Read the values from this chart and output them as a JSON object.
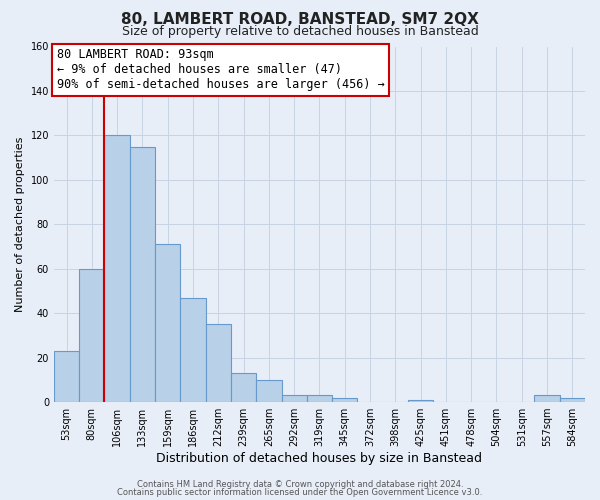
{
  "title": "80, LAMBERT ROAD, BANSTEAD, SM7 2QX",
  "subtitle": "Size of property relative to detached houses in Banstead",
  "xlabel": "Distribution of detached houses by size in Banstead",
  "ylabel": "Number of detached properties",
  "bar_labels": [
    "53sqm",
    "80sqm",
    "106sqm",
    "133sqm",
    "159sqm",
    "186sqm",
    "212sqm",
    "239sqm",
    "265sqm",
    "292sqm",
    "319sqm",
    "345sqm",
    "372sqm",
    "398sqm",
    "425sqm",
    "451sqm",
    "478sqm",
    "504sqm",
    "531sqm",
    "557sqm",
    "584sqm"
  ],
  "bar_values": [
    23,
    60,
    120,
    115,
    71,
    47,
    35,
    13,
    10,
    3,
    3,
    2,
    0,
    0,
    1,
    0,
    0,
    0,
    0,
    3,
    2
  ],
  "bar_color": "#b8d0e8",
  "bar_edge_color": "#6699cc",
  "bar_edge_width": 0.8,
  "ylim": [
    0,
    160
  ],
  "yticks": [
    0,
    20,
    40,
    60,
    80,
    100,
    120,
    140,
    160
  ],
  "grid_color": "#c8d4e4",
  "background_color": "#e8eef8",
  "vline_x_index": 1,
  "vline_color": "#cc0000",
  "annotation_line1": "80 LAMBERT ROAD: 93sqm",
  "annotation_line2": "← 9% of detached houses are smaller (47)",
  "annotation_line3": "90% of semi-detached houses are larger (456) →",
  "annotation_box_edgecolor": "#cc0000",
  "annotation_box_facecolor": "#ffffff",
  "footer_line1": "Contains HM Land Registry data © Crown copyright and database right 2024.",
  "footer_line2": "Contains public sector information licensed under the Open Government Licence v3.0.",
  "title_fontsize": 11,
  "subtitle_fontsize": 9,
  "xlabel_fontsize": 9,
  "ylabel_fontsize": 8,
  "tick_fontsize": 7,
  "footer_fontsize": 6,
  "annotation_fontsize": 8.5
}
